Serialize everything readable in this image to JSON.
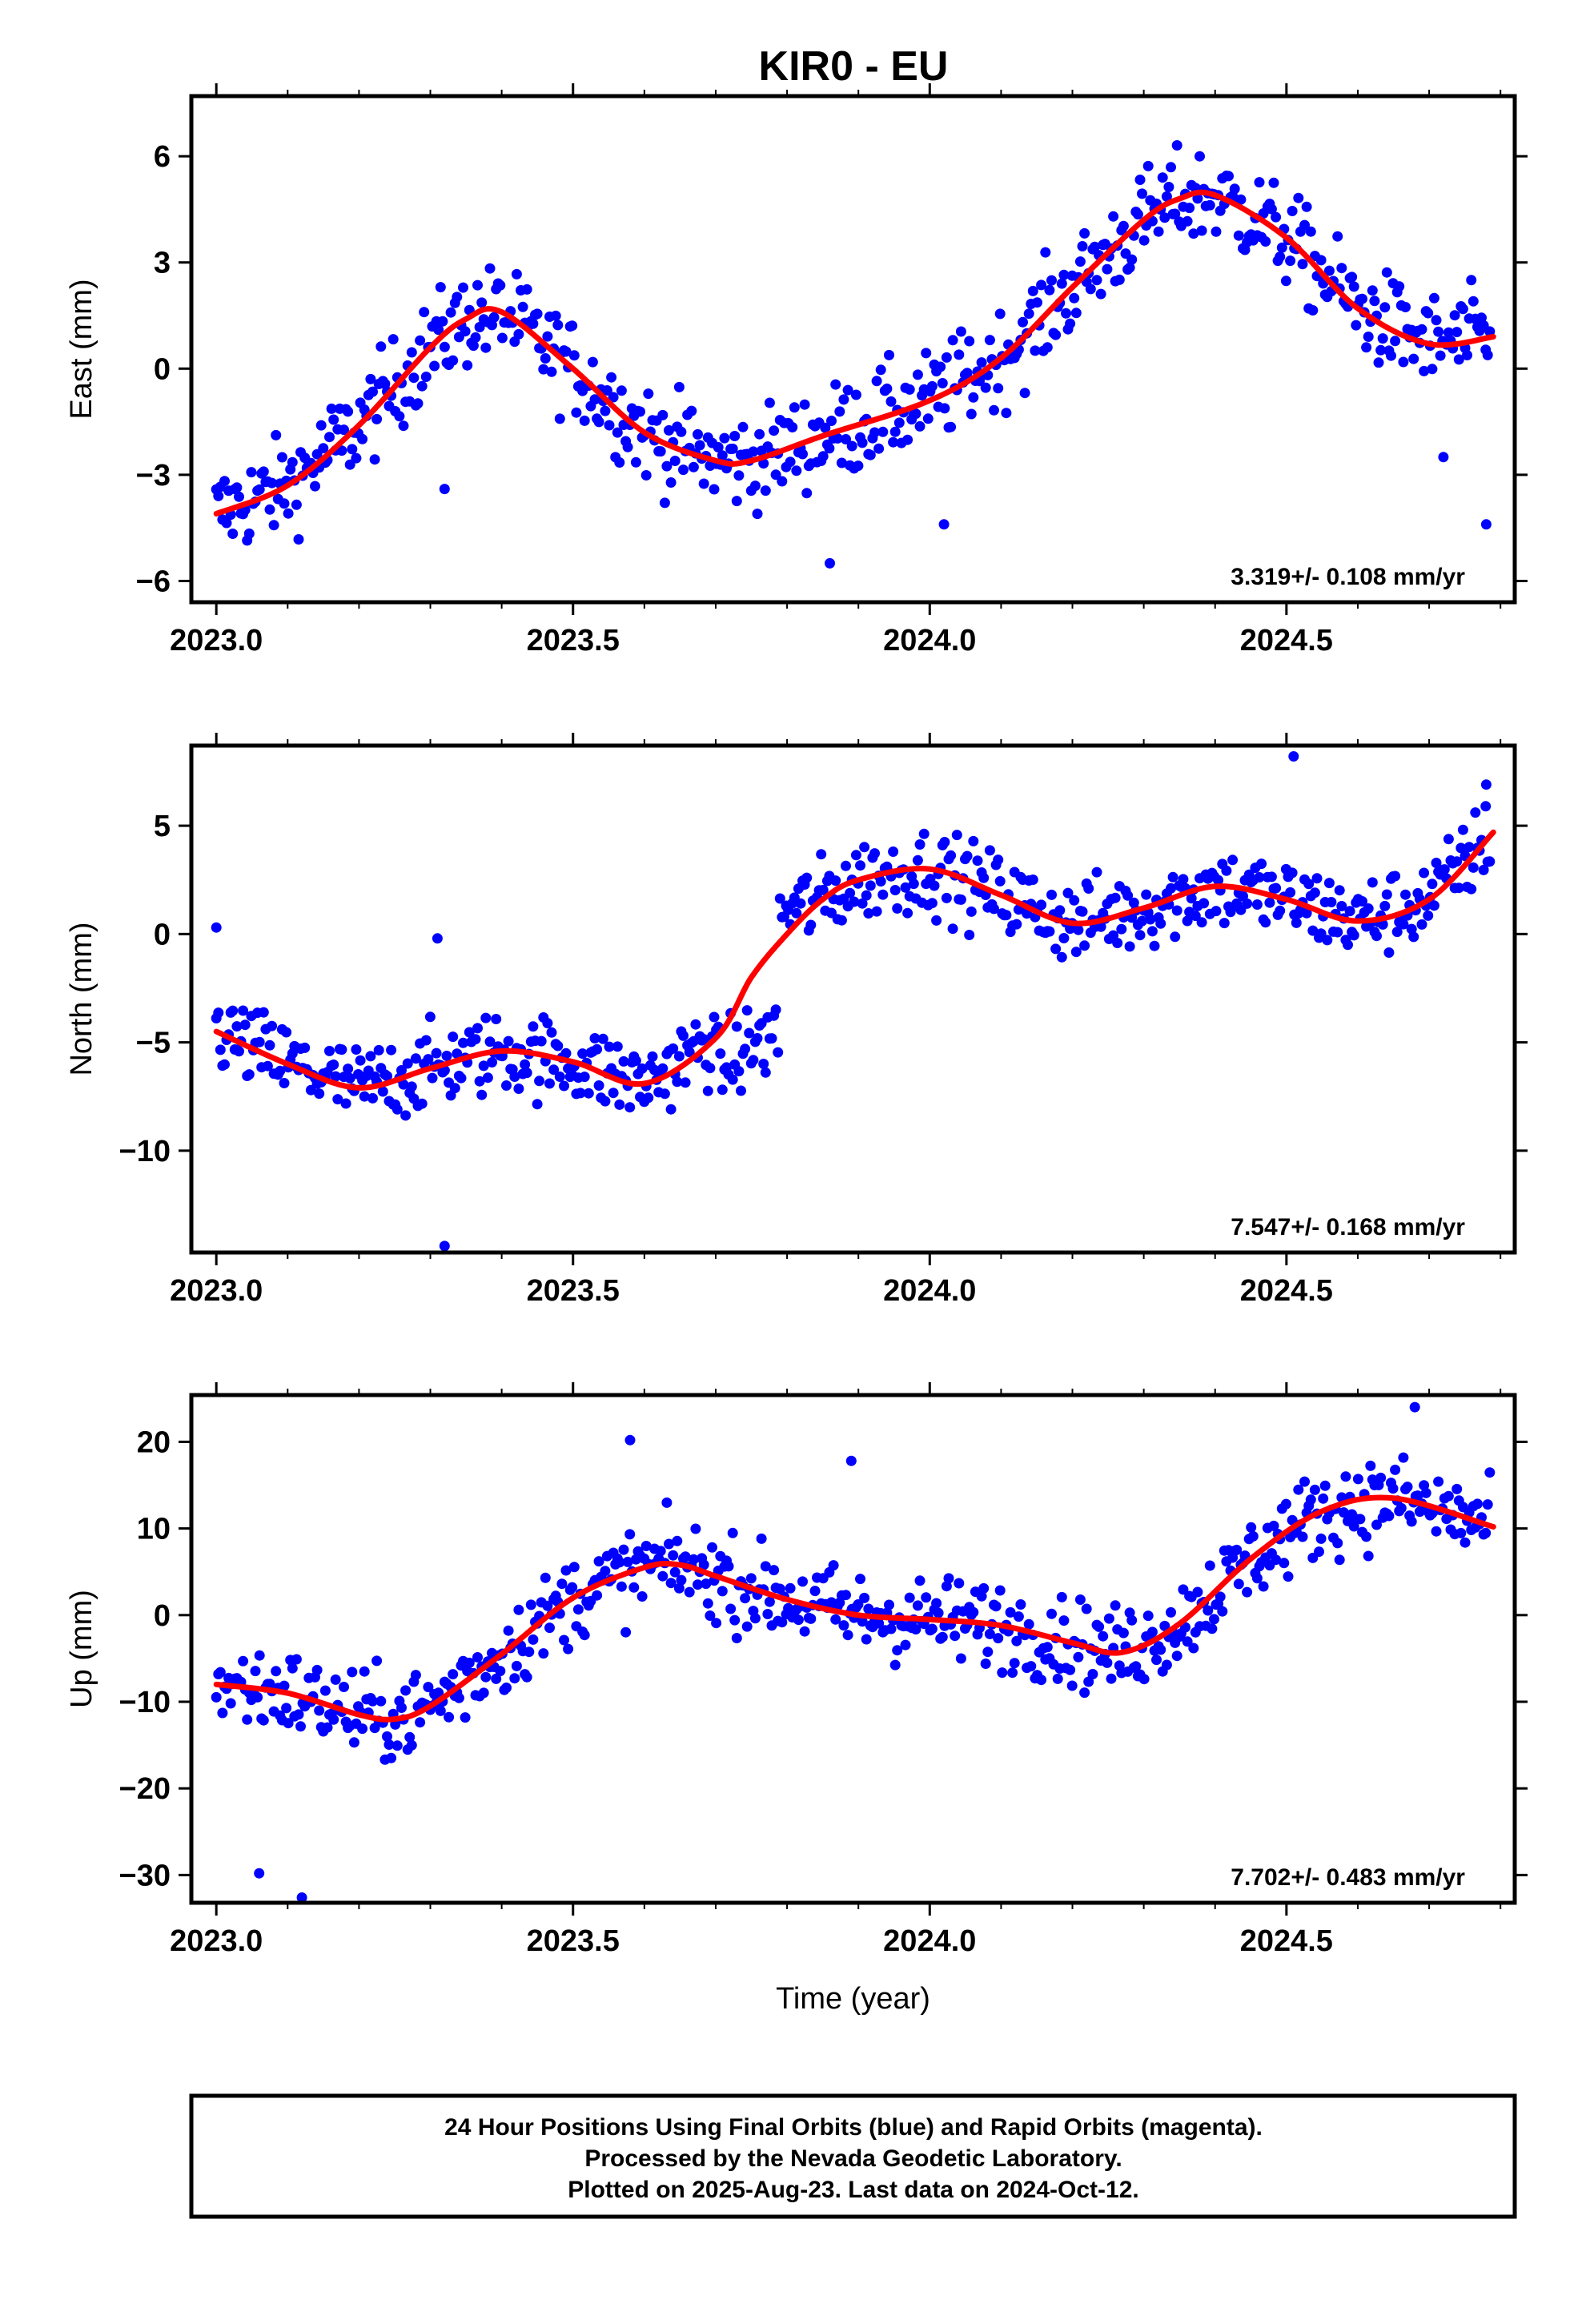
{
  "title": "KIR0 - EU",
  "colors": {
    "points": "#0000ff",
    "fit": "#ff0000",
    "frame": "#000000"
  },
  "chart_data": [
    {
      "type": "scatter",
      "ylabel": "East (mm)",
      "xlim": [
        2022.965,
        2024.82
      ],
      "ylim": [
        -6.6,
        7.7
      ],
      "xticks": [
        2023.0,
        2023.5,
        2024.0,
        2024.5
      ],
      "xtick_labels": [
        "2023.0",
        "2023.5",
        "2024.0",
        "2024.5"
      ],
      "yticks": [
        -6,
        -3,
        0,
        3,
        6
      ],
      "ytick_labels": [
        "−6",
        "−3",
        "0",
        "3",
        "6"
      ],
      "rate_label": "3.319+/- 0.108 mm/yr",
      "trend": {
        "x": [
          2023.0,
          2023.1,
          2023.2,
          2023.3,
          2023.35,
          2023.4,
          2023.5,
          2023.6,
          2023.7,
          2023.75,
          2023.85,
          2024.0,
          2024.1,
          2024.2,
          2024.3,
          2024.35,
          2024.4,
          2024.5,
          2024.6,
          2024.7,
          2024.79
        ],
        "y": [
          -4.1,
          -3.3,
          -1.6,
          0.6,
          1.4,
          1.6,
          0.0,
          -1.8,
          -2.6,
          -2.6,
          -1.9,
          -0.9,
          0.3,
          2.3,
          4.2,
          4.8,
          4.9,
          3.7,
          1.7,
          0.7,
          0.9
        ]
      },
      "scatter_sd": 1.25,
      "outliers": {
        "x": [
          2023.32,
          2023.86,
          2024.02,
          2024.72,
          2024.78
        ],
        "y": [
          -3.4,
          -5.5,
          -4.4,
          -2.5,
          -4.4
        ]
      }
    },
    {
      "type": "scatter",
      "ylabel": "North (mm)",
      "xlim": [
        2022.965,
        2024.82
      ],
      "ylim": [
        -14.7,
        8.7
      ],
      "xticks": [
        2023.0,
        2023.5,
        2024.0,
        2024.5
      ],
      "xtick_labels": [
        "2023.0",
        "2023.5",
        "2024.0",
        "2024.5"
      ],
      "yticks": [
        -10,
        -5,
        0,
        5
      ],
      "ytick_labels": [
        "−10",
        "−5",
        "0",
        "5"
      ],
      "rate_label": "7.547+/- 0.168 mm/yr",
      "trend": {
        "x": [
          2023.0,
          2023.1,
          2023.2,
          2023.3,
          2023.4,
          2023.5,
          2023.6,
          2023.7,
          2023.75,
          2023.8,
          2023.85,
          2023.9,
          2024.0,
          2024.1,
          2024.2,
          2024.3,
          2024.4,
          2024.5,
          2024.6,
          2024.7,
          2024.79
        ],
        "y": [
          -4.5,
          -6.0,
          -7.1,
          -6.2,
          -5.4,
          -5.9,
          -6.9,
          -4.8,
          -2.0,
          0.0,
          1.6,
          2.5,
          3.0,
          1.8,
          0.5,
          1.2,
          2.2,
          1.6,
          0.6,
          1.6,
          4.7
        ]
      },
      "scatter_sd": 1.75,
      "outliers": {
        "x": [
          2023.0,
          2023.31,
          2023.32,
          2024.51,
          2024.78
        ],
        "y": [
          0.3,
          -0.2,
          -14.4,
          8.2,
          6.9
        ]
      }
    },
    {
      "type": "scatter",
      "ylabel": "Up (mm)",
      "xlabel": "Time (year)",
      "xlim": [
        2022.965,
        2024.82
      ],
      "ylim": [
        -33.2,
        25.4
      ],
      "xticks": [
        2023.0,
        2023.5,
        2024.0,
        2024.5
      ],
      "xtick_labels": [
        "2023.0",
        "2023.5",
        "2024.0",
        "2024.5"
      ],
      "yticks": [
        -30,
        -20,
        -10,
        0,
        10,
        20
      ],
      "ytick_labels": [
        "−30",
        "−20",
        "−10",
        "0",
        "10",
        "20"
      ],
      "rate_label": "7.702+/- 0.483 mm/yr",
      "trend": {
        "x": [
          2023.0,
          2023.1,
          2023.2,
          2023.25,
          2023.3,
          2023.4,
          2023.5,
          2023.6,
          2023.65,
          2023.7,
          2023.8,
          2023.9,
          2024.0,
          2024.1,
          2024.2,
          2024.27,
          2024.35,
          2024.45,
          2024.55,
          2024.65,
          2024.79
        ],
        "y": [
          -8.0,
          -9.0,
          -11.5,
          -12.0,
          -10.5,
          -4.5,
          2.0,
          5.5,
          5.8,
          4.5,
          1.8,
          0.0,
          -0.5,
          -1.2,
          -3.2,
          -4.3,
          -1.0,
          6.5,
          12.0,
          13.5,
          10.2
        ]
      },
      "scatter_sd": 4.6,
      "outliers": {
        "x": [
          2023.06,
          2023.12,
          2023.58,
          2023.89,
          2024.68
        ],
        "y": [
          -29.8,
          -32.6,
          20.2,
          17.8,
          24.0
        ]
      }
    }
  ],
  "footer": [
    "24 Hour Positions Using Final Orbits (blue) and Rapid Orbits (magenta).",
    "Processed by the Nevada Geodetic Laboratory.",
    "Plotted on 2025-Aug-23. Last data on 2024-Oct-12."
  ]
}
